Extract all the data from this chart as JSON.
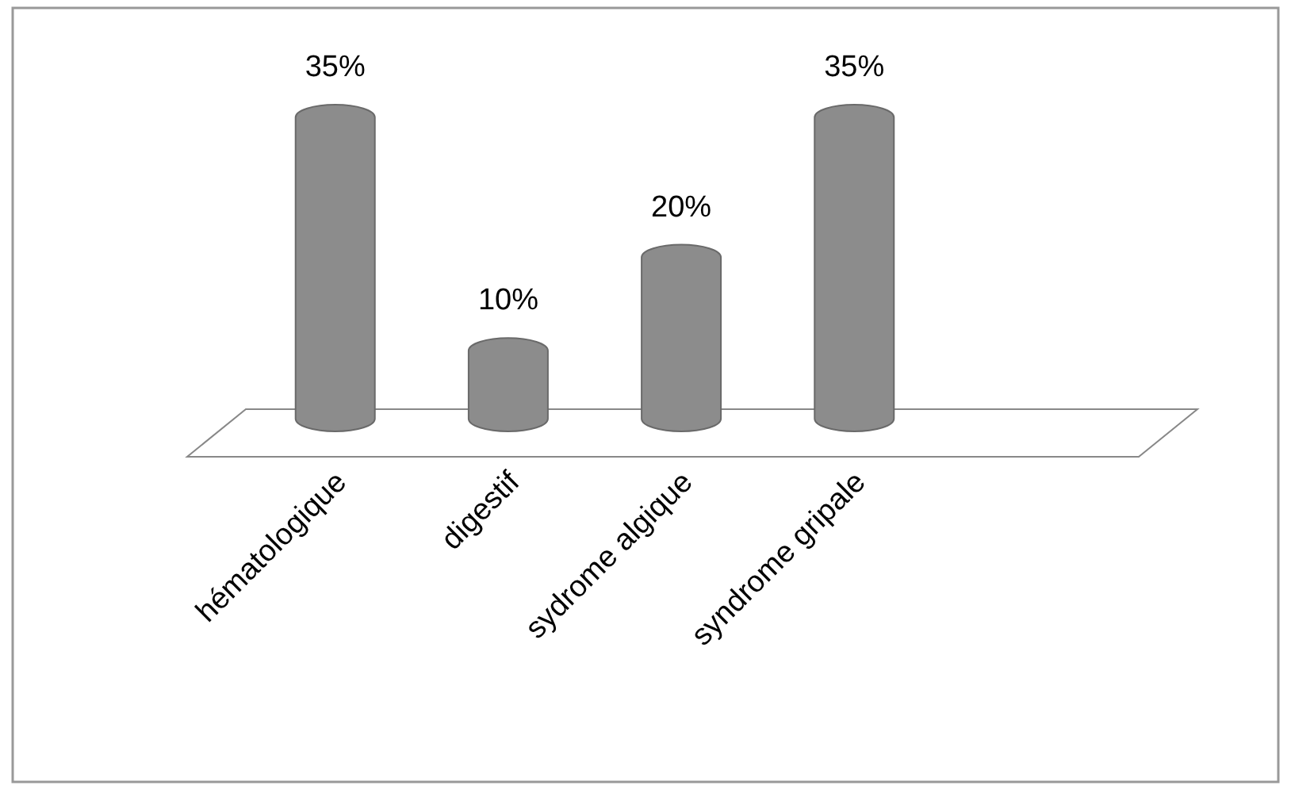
{
  "chart_data": {
    "type": "bar",
    "categories": [
      "hématologique",
      "digestif",
      "sydrome algique",
      "syndrome gripale"
    ],
    "values": [
      35,
      10,
      20,
      35
    ],
    "value_labels": [
      "35%",
      "10%",
      "20%",
      "35%"
    ],
    "color": "#8c8c8c"
  }
}
